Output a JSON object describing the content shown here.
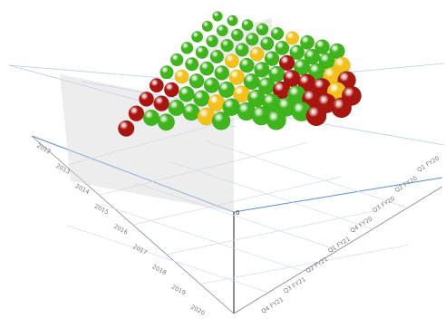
{
  "chart_data": {
    "type": "scatter",
    "view": "3d-perspective",
    "grid": true,
    "legend": "none",
    "title": "",
    "left_axis": {
      "label": "",
      "ticks": [
        "2012",
        "2013",
        "2014",
        "2015",
        "2016",
        "2017",
        "2018",
        "2019",
        "2020"
      ]
    },
    "right_axis": {
      "label": "",
      "ticks": [
        "Q1 FY20",
        "Q2 FY20",
        "Q3 FY20",
        "Q4 FY20",
        "Q1 FY21",
        "Q2 FY21",
        "Q3 FY21",
        "Q4 FY21"
      ]
    },
    "vertical_axis": {
      "label": "",
      "ticks": [
        "0"
      ]
    },
    "status_colors": {
      "green": "#3fb51c",
      "yellow": "#f2c21b",
      "red": "#a9150f",
      "highlight_green": "#86c67a"
    },
    "rows": [
      [
        "green",
        "green",
        "green",
        "green",
        "green",
        "yellow",
        "green",
        "green",
        "green"
      ],
      [
        "green",
        "green",
        "green",
        "green",
        "green",
        "green",
        "green",
        "green",
        "green",
        "yellow"
      ],
      [
        "green",
        "green",
        "green",
        "green",
        "yellow",
        "green",
        "red",
        "green",
        "green",
        "yellow",
        "red"
      ],
      [
        "green",
        "green",
        "green",
        "yellow",
        "green",
        "green",
        "green",
        "red",
        "red",
        "red",
        "yellow",
        "red"
      ],
      [
        "green",
        "green",
        "green",
        "green",
        "yellow",
        "green",
        "green",
        "red",
        "green",
        "red",
        "red",
        "red"
      ],
      [
        "green",
        "yellow",
        "green",
        "green",
        "green",
        "yellow",
        "green",
        "green",
        "green",
        "green",
        "red"
      ],
      [
        "red",
        "red",
        "green",
        "green",
        "yellow",
        "green",
        "green",
        "green",
        "green"
      ],
      [
        "red",
        "red",
        "green",
        "green",
        "yellow",
        "green"
      ],
      [
        "red",
        "green",
        "green"
      ],
      [
        "red"
      ]
    ]
  }
}
